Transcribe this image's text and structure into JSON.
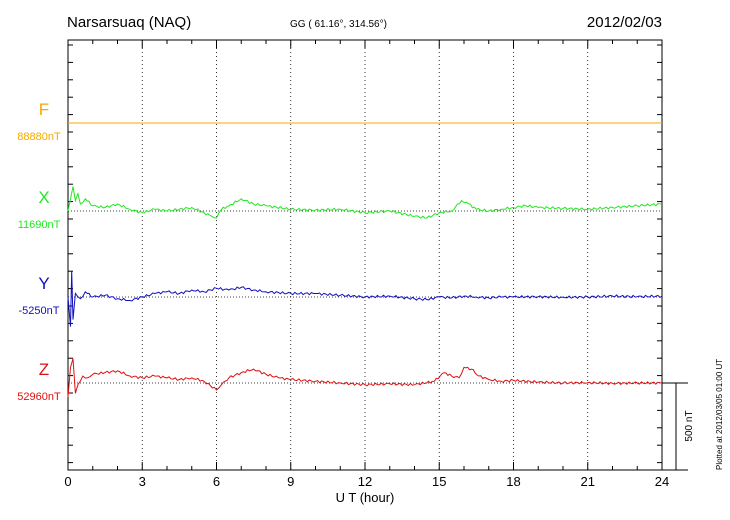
{
  "header": {
    "station": "Narsarsuaq (NAQ)",
    "coords": "GG ( 61.16°, 314.56°)",
    "date": "2012/02/03"
  },
  "footer": {
    "plotted": "Plotted at 2012/03/05 01:00 UT"
  },
  "chart_data": {
    "type": "line",
    "xlabel": "U T (hour)",
    "xlim": [
      0,
      24
    ],
    "xticks": [
      "0",
      "3",
      "6",
      "9",
      "12",
      "15",
      "18",
      "21",
      "24"
    ],
    "grid": "dotted vertical lines every 3 hours",
    "scale_bar": {
      "label": "500 nT",
      "value": 500
    },
    "series": [
      {
        "name": "F",
        "baseline_label": "88880nT",
        "baseline": 88880,
        "color": "#f5a800",
        "x": [
          0,
          24
        ],
        "y": [
          88880,
          88880
        ]
      },
      {
        "name": "X",
        "baseline_label": "11690nT",
        "baseline": 11690,
        "color": "#22e822",
        "x": [
          0.0,
          0.1,
          0.2,
          0.3,
          0.4,
          0.5,
          0.7,
          1.0,
          1.5,
          2.0,
          2.5,
          3.0,
          3.5,
          4.0,
          4.5,
          5.0,
          5.5,
          5.8,
          6.0,
          6.2,
          6.5,
          7.0,
          7.5,
          8.0,
          9.0,
          10.0,
          11.0,
          12.0,
          13.0,
          14.0,
          14.5,
          15.0,
          15.5,
          15.9,
          16.1,
          16.5,
          17.0,
          17.5,
          18.0,
          18.5,
          19.0,
          20.0,
          21.0,
          22.0,
          23.0,
          24.0
        ],
        "y": [
          11690,
          11760,
          11830,
          11750,
          11790,
          11730,
          11760,
          11720,
          11710,
          11730,
          11700,
          11680,
          11700,
          11690,
          11700,
          11710,
          11680,
          11660,
          11650,
          11700,
          11720,
          11760,
          11730,
          11720,
          11700,
          11695,
          11700,
          11680,
          11690,
          11660,
          11650,
          11680,
          11690,
          11750,
          11740,
          11700,
          11690,
          11700,
          11710,
          11720,
          11710,
          11705,
          11700,
          11710,
          11720,
          11730
        ]
      },
      {
        "name": "Y",
        "baseline_label": "-5250nT",
        "baseline": -5250,
        "color": "#1010c0",
        "x": [
          0.0,
          0.1,
          0.15,
          0.2,
          0.3,
          0.5,
          0.7,
          1.0,
          1.5,
          2.0,
          2.5,
          3.0,
          3.5,
          4.0,
          4.5,
          5.0,
          5.5,
          6.0,
          6.5,
          7.0,
          7.5,
          8.0,
          9.0,
          10.0,
          11.0,
          12.0,
          13.0,
          14.0,
          14.5,
          15.0,
          15.5,
          16.0,
          16.5,
          17.0,
          17.5,
          18.0,
          19.0,
          20.0,
          21.0,
          22.0,
          23.0,
          24.0
        ],
        "y": [
          -5250,
          -5420,
          -5100,
          -5380,
          -5230,
          -5260,
          -5220,
          -5250,
          -5240,
          -5260,
          -5270,
          -5250,
          -5230,
          -5220,
          -5230,
          -5210,
          -5220,
          -5200,
          -5210,
          -5195,
          -5210,
          -5220,
          -5230,
          -5230,
          -5240,
          -5250,
          -5245,
          -5260,
          -5265,
          -5250,
          -5255,
          -5245,
          -5250,
          -5255,
          -5250,
          -5250,
          -5248,
          -5252,
          -5250,
          -5245,
          -5248,
          -5245
        ]
      },
      {
        "name": "Z",
        "baseline_label": "52960nT",
        "baseline": 52960,
        "color": "#e01010",
        "x": [
          0.0,
          0.1,
          0.2,
          0.3,
          0.4,
          0.6,
          0.8,
          1.0,
          1.5,
          2.0,
          2.5,
          3.0,
          3.5,
          4.0,
          4.5,
          5.0,
          5.5,
          6.0,
          6.2,
          6.5,
          7.0,
          7.5,
          8.0,
          8.5,
          9.0,
          10.0,
          11.0,
          12.0,
          13.0,
          14.0,
          14.8,
          15.2,
          15.5,
          15.8,
          16.0,
          16.3,
          16.6,
          17.0,
          17.5,
          18.0,
          19.0,
          20.0,
          21.0,
          22.0,
          23.0,
          24.0
        ],
        "y": [
          52880,
          53050,
          53100,
          52900,
          52950,
          53000,
          52990,
          53010,
          53020,
          53030,
          53000,
          52990,
          53000,
          52990,
          52980,
          52990,
          52970,
          52920,
          52950,
          52990,
          53020,
          53040,
          53010,
          52990,
          52980,
          52970,
          52960,
          52950,
          52955,
          52950,
          52970,
          53020,
          53000,
          52990,
          53050,
          53040,
          53000,
          52980,
          52970,
          52975,
          52965,
          52960,
          52962,
          52958,
          52960,
          52960
        ]
      }
    ]
  }
}
